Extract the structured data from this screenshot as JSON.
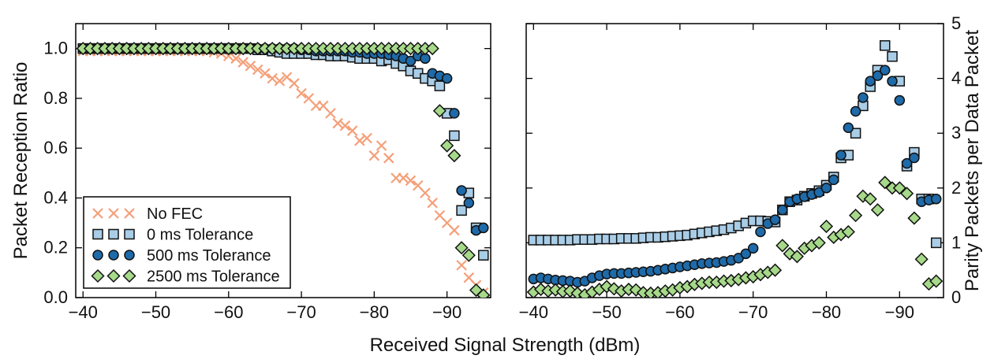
{
  "figure": {
    "xlabel": "Received Signal Strength (dBm)"
  },
  "colors": {
    "no_fec": "#f4a07a",
    "tol0": "#a9cde6",
    "tol500": "#1f6aa8",
    "tol2500": "#a6d98a",
    "edge": "#111111"
  },
  "chart_data": [
    {
      "type": "scatter",
      "ylabel": "Packet Reception Ratio",
      "xlim": [
        -39,
        -96
      ],
      "ylim": [
        0.0,
        1.1
      ],
      "xticks": [
        -40,
        -50,
        -60,
        -70,
        -80,
        -90
      ],
      "xtick_labels": [
        "−40",
        "−50",
        "−60",
        "−70",
        "−80",
        "−90"
      ],
      "yticks": [
        0.0,
        0.2,
        0.4,
        0.6,
        0.8,
        1.0
      ],
      "ytick_labels": [
        "0.0",
        "0.2",
        "0.4",
        "0.6",
        "0.8",
        "1.0"
      ],
      "legend": {
        "placement": "lower-left",
        "entries": [
          "No FEC",
          "0 ms Tolerance",
          "500 ms Tolerance",
          "2500 ms Tolerance"
        ]
      },
      "series": [
        {
          "name": "No FEC",
          "marker": "x",
          "x": [
            -40,
            -41,
            -42,
            -43,
            -44,
            -45,
            -46,
            -47,
            -48,
            -49,
            -50,
            -51,
            -52,
            -53,
            -54,
            -55,
            -56,
            -57,
            -58,
            -59,
            -60,
            -61,
            -62,
            -63,
            -64,
            -65,
            -66,
            -67,
            -68,
            -69,
            -70,
            -71,
            -72,
            -73,
            -74,
            -75,
            -76,
            -77,
            -78,
            -79,
            -80,
            -81,
            -82,
            -83,
            -84,
            -85,
            -86,
            -87,
            -88,
            -89,
            -90,
            -91,
            -92,
            -93,
            -94,
            -95
          ],
          "y": [
            0.99,
            0.99,
            0.99,
            0.99,
            0.99,
            0.99,
            0.99,
            0.99,
            0.99,
            0.99,
            0.99,
            0.99,
            0.99,
            0.99,
            0.99,
            0.99,
            0.99,
            0.99,
            0.985,
            0.98,
            0.97,
            0.96,
            0.945,
            0.93,
            0.915,
            0.9,
            0.88,
            0.87,
            0.885,
            0.86,
            0.82,
            0.8,
            0.77,
            0.77,
            0.74,
            0.7,
            0.69,
            0.67,
            0.63,
            0.64,
            0.57,
            0.61,
            0.56,
            0.48,
            0.48,
            0.47,
            0.45,
            0.42,
            0.38,
            0.33,
            0.3,
            0.27,
            0.13,
            0.08,
            0.05,
            0.02
          ]
        },
        {
          "name": "0 ms Tolerance",
          "marker": "square",
          "x": [
            -40,
            -41,
            -42,
            -43,
            -44,
            -45,
            -46,
            -47,
            -48,
            -49,
            -50,
            -51,
            -52,
            -53,
            -54,
            -55,
            -56,
            -57,
            -58,
            -59,
            -60,
            -61,
            -62,
            -63,
            -64,
            -65,
            -66,
            -67,
            -68,
            -69,
            -70,
            -71,
            -72,
            -73,
            -74,
            -75,
            -76,
            -77,
            -78,
            -79,
            -80,
            -81,
            -82,
            -83,
            -84,
            -85,
            -86,
            -87,
            -88,
            -89,
            -90,
            -91,
            -92,
            -93,
            -94,
            -95
          ],
          "y": [
            1.0,
            1.0,
            1.0,
            1.0,
            1.0,
            1.0,
            1.0,
            1.0,
            1.0,
            1.0,
            1.0,
            1.0,
            1.0,
            1.0,
            1.0,
            1.0,
            1.0,
            1.0,
            1.0,
            1.0,
            1.0,
            1.0,
            1.0,
            1.0,
            0.995,
            0.995,
            0.99,
            0.985,
            0.98,
            0.98,
            0.98,
            0.98,
            0.975,
            0.975,
            0.97,
            0.97,
            0.97,
            0.965,
            0.96,
            0.96,
            0.96,
            0.95,
            0.955,
            0.94,
            0.93,
            0.91,
            0.9,
            0.88,
            0.87,
            0.85,
            0.74,
            0.65,
            0.35,
            0.42,
            0.28,
            0.17
          ]
        },
        {
          "name": "500 ms Tolerance",
          "marker": "circle",
          "x": [
            -40,
            -41,
            -42,
            -43,
            -44,
            -45,
            -46,
            -47,
            -48,
            -49,
            -50,
            -51,
            -52,
            -53,
            -54,
            -55,
            -56,
            -57,
            -58,
            -59,
            -60,
            -61,
            -62,
            -63,
            -64,
            -65,
            -66,
            -67,
            -68,
            -69,
            -70,
            -71,
            -72,
            -73,
            -74,
            -75,
            -76,
            -77,
            -78,
            -79,
            -80,
            -81,
            -82,
            -83,
            -84,
            -85,
            -86,
            -87,
            -88,
            -89,
            -90,
            -91,
            -92,
            -93,
            -94,
            -95
          ],
          "y": [
            1.0,
            1.0,
            1.0,
            1.0,
            1.0,
            1.0,
            1.0,
            1.0,
            1.0,
            1.0,
            1.0,
            1.0,
            1.0,
            1.0,
            1.0,
            1.0,
            1.0,
            1.0,
            1.0,
            1.0,
            1.0,
            1.0,
            1.0,
            1.0,
            1.0,
            1.0,
            1.0,
            1.0,
            1.0,
            1.0,
            0.995,
            0.995,
            0.99,
            0.99,
            0.99,
            0.99,
            0.99,
            0.985,
            0.985,
            0.98,
            0.98,
            0.98,
            0.975,
            0.97,
            0.96,
            0.95,
            0.97,
            0.96,
            0.9,
            0.89,
            0.88,
            0.74,
            0.43,
            0.38,
            0.27,
            0.28
          ]
        },
        {
          "name": "2500 ms Tolerance",
          "marker": "diamond",
          "x": [
            -40,
            -41,
            -42,
            -43,
            -44,
            -45,
            -46,
            -47,
            -48,
            -49,
            -50,
            -51,
            -52,
            -53,
            -54,
            -55,
            -56,
            -57,
            -58,
            -59,
            -60,
            -61,
            -62,
            -63,
            -64,
            -65,
            -66,
            -67,
            -68,
            -69,
            -70,
            -71,
            -72,
            -73,
            -74,
            -75,
            -76,
            -77,
            -78,
            -79,
            -80,
            -81,
            -82,
            -83,
            -84,
            -85,
            -86,
            -87,
            -88,
            -89,
            -90,
            -91,
            -92,
            -93,
            -94,
            -95
          ],
          "y": [
            1.0,
            1.0,
            1.0,
            1.0,
            1.0,
            1.0,
            1.0,
            1.0,
            1.0,
            1.0,
            1.0,
            1.0,
            1.0,
            1.0,
            1.0,
            1.0,
            1.0,
            1.0,
            1.0,
            1.0,
            1.0,
            1.0,
            1.0,
            1.0,
            1.0,
            1.0,
            1.0,
            1.0,
            1.0,
            1.0,
            1.0,
            1.0,
            1.0,
            1.0,
            1.0,
            1.0,
            1.0,
            1.0,
            1.0,
            1.0,
            1.0,
            1.0,
            1.0,
            1.0,
            1.0,
            1.0,
            1.0,
            1.0,
            1.0,
            0.75,
            0.61,
            0.57,
            0.2,
            0.17,
            0.03,
            0.01
          ]
        }
      ]
    },
    {
      "type": "scatter",
      "ylabel": "Parity Packets per Data Packet",
      "xlim": [
        -39,
        -96
      ],
      "ylim": [
        0,
        5
      ],
      "xticks": [
        -40,
        -50,
        -60,
        -70,
        -80,
        -90
      ],
      "xtick_labels": [
        "−40",
        "−50",
        "−60",
        "−70",
        "−80",
        "−90"
      ],
      "yticks": [
        0,
        1,
        2,
        3,
        4,
        5
      ],
      "ytick_labels": [
        "0",
        "1",
        "2",
        "3",
        "4",
        "5"
      ],
      "yaxis_side": "right",
      "series": [
        {
          "name": "0 ms Tolerance",
          "marker": "square",
          "x": [
            -40,
            -41,
            -42,
            -43,
            -44,
            -45,
            -46,
            -47,
            -48,
            -49,
            -50,
            -51,
            -52,
            -53,
            -54,
            -55,
            -56,
            -57,
            -58,
            -59,
            -60,
            -61,
            -62,
            -63,
            -64,
            -65,
            -66,
            -67,
            -68,
            -69,
            -70,
            -71,
            -72,
            -73,
            -74,
            -75,
            -76,
            -77,
            -78,
            -79,
            -80,
            -81,
            -82,
            -83,
            -84,
            -85,
            -86,
            -87,
            -88,
            -89,
            -90,
            -91,
            -92,
            -93,
            -94,
            -95
          ],
          "y": [
            1.05,
            1.05,
            1.05,
            1.05,
            1.05,
            1.05,
            1.06,
            1.06,
            1.06,
            1.07,
            1.07,
            1.07,
            1.08,
            1.08,
            1.08,
            1.09,
            1.1,
            1.1,
            1.11,
            1.12,
            1.13,
            1.14,
            1.16,
            1.18,
            1.2,
            1.22,
            1.24,
            1.27,
            1.31,
            1.36,
            1.4,
            1.4,
            1.39,
            1.38,
            1.6,
            1.75,
            1.78,
            1.85,
            1.9,
            1.95,
            2.05,
            2.2,
            2.55,
            2.6,
            3.0,
            3.5,
            3.85,
            4.15,
            4.6,
            4.4,
            3.95,
            2.4,
            2.65,
            1.8,
            1.8,
            1.0
          ]
        },
        {
          "name": "500 ms Tolerance",
          "marker": "circle",
          "x": [
            -40,
            -41,
            -42,
            -43,
            -44,
            -45,
            -46,
            -47,
            -48,
            -49,
            -50,
            -51,
            -52,
            -53,
            -54,
            -55,
            -56,
            -57,
            -58,
            -59,
            -60,
            -61,
            -62,
            -63,
            -64,
            -65,
            -66,
            -67,
            -68,
            -69,
            -70,
            -71,
            -72,
            -73,
            -74,
            -75,
            -76,
            -77,
            -78,
            -79,
            -80,
            -81,
            -82,
            -83,
            -84,
            -85,
            -86,
            -87,
            -88,
            -89,
            -90,
            -91,
            -92,
            -93,
            -94,
            -95
          ],
          "y": [
            0.34,
            0.36,
            0.34,
            0.32,
            0.31,
            0.3,
            0.28,
            0.3,
            0.36,
            0.4,
            0.43,
            0.44,
            0.44,
            0.45,
            0.46,
            0.47,
            0.48,
            0.5,
            0.52,
            0.54,
            0.56,
            0.58,
            0.6,
            0.62,
            0.63,
            0.64,
            0.66,
            0.68,
            0.72,
            0.8,
            0.9,
            1.2,
            1.35,
            1.42,
            1.6,
            1.75,
            1.8,
            1.84,
            1.88,
            1.92,
            2.0,
            2.15,
            2.6,
            3.1,
            3.4,
            3.65,
            3.95,
            4.05,
            4.15,
            3.95,
            3.6,
            2.45,
            2.55,
            1.75,
            1.78,
            1.8
          ]
        },
        {
          "name": "2500 ms Tolerance",
          "marker": "diamond",
          "x": [
            -40,
            -41,
            -42,
            -43,
            -44,
            -45,
            -46,
            -47,
            -48,
            -49,
            -50,
            -51,
            -52,
            -53,
            -54,
            -55,
            -56,
            -57,
            -58,
            -59,
            -60,
            -61,
            -62,
            -63,
            -64,
            -65,
            -66,
            -67,
            -68,
            -69,
            -70,
            -71,
            -72,
            -73,
            -74,
            -75,
            -76,
            -77,
            -78,
            -79,
            -80,
            -81,
            -82,
            -83,
            -84,
            -85,
            -86,
            -87,
            -88,
            -89,
            -90,
            -91,
            -92,
            -93,
            -94,
            -95
          ],
          "y": [
            0.1,
            0.15,
            0.12,
            0.14,
            0.11,
            0.12,
            0.08,
            0.05,
            0.1,
            0.15,
            0.2,
            0.16,
            0.12,
            0.15,
            0.14,
            0.09,
            0.08,
            0.09,
            0.12,
            0.14,
            0.18,
            0.2,
            0.24,
            0.26,
            0.28,
            0.28,
            0.3,
            0.31,
            0.33,
            0.36,
            0.38,
            0.42,
            0.46,
            0.5,
            0.95,
            0.8,
            0.75,
            0.9,
            0.95,
            1.0,
            1.3,
            1.1,
            1.15,
            1.2,
            1.5,
            1.85,
            1.8,
            1.6,
            2.1,
            2.0,
            2.0,
            1.9,
            1.45,
            0.7,
            0.25,
            0.3
          ]
        }
      ]
    }
  ]
}
